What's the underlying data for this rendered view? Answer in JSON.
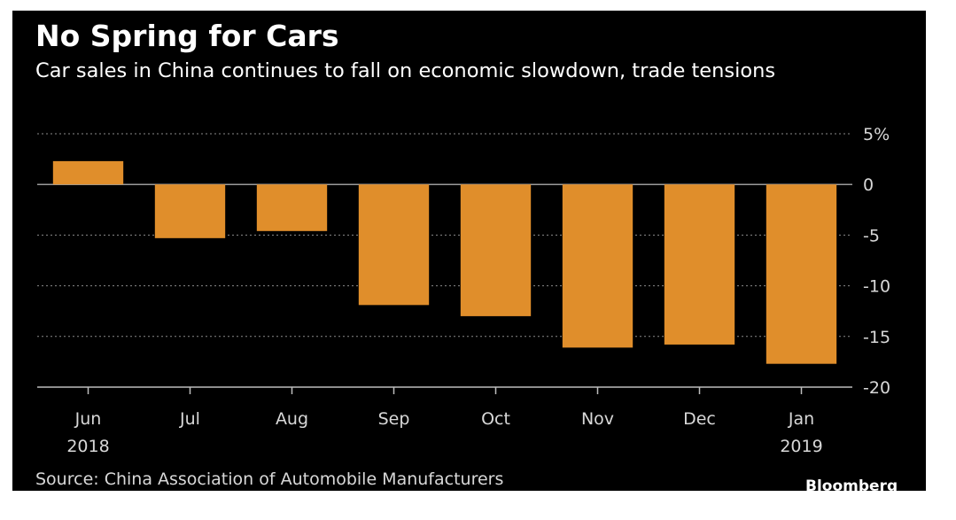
{
  "title": "No Spring for Cars",
  "subtitle": "Car sales in China continues to fall on economic slowdown, trade tensions",
  "source": "Source: China Association of Automobile Manufacturers",
  "brand": "Bloomberg",
  "colors": {
    "background": "#000000",
    "bar": "#e08e2b",
    "text": "#ffffff",
    "muted": "#d8d8d8",
    "grid": "#8a8a8a"
  },
  "chart_data": {
    "type": "bar",
    "categories": [
      "Jun",
      "Jul",
      "Aug",
      "Sep",
      "Oct",
      "Nov",
      "Dec",
      "Jan"
    ],
    "category_years": [
      "2018",
      "",
      "",
      "",
      "",
      "",
      "",
      "2019"
    ],
    "values": [
      2.3,
      -5.3,
      -4.6,
      -11.9,
      -13.0,
      -16.1,
      -15.8,
      -17.7
    ],
    "title": "No Spring for Cars",
    "subtitle": "Car sales in China continues to fall on economic slowdown, trade tensions",
    "xlabel": "",
    "ylabel": "",
    "ylim": [
      -20,
      5
    ],
    "yticks": [
      5,
      0,
      -5,
      -10,
      -15,
      -20
    ],
    "ytick_labels": [
      "5%",
      "0",
      "-5",
      "-10",
      "-15",
      "-20"
    ],
    "y_axis_side": "right",
    "grid": "dotted horizontal",
    "legend": "none"
  }
}
